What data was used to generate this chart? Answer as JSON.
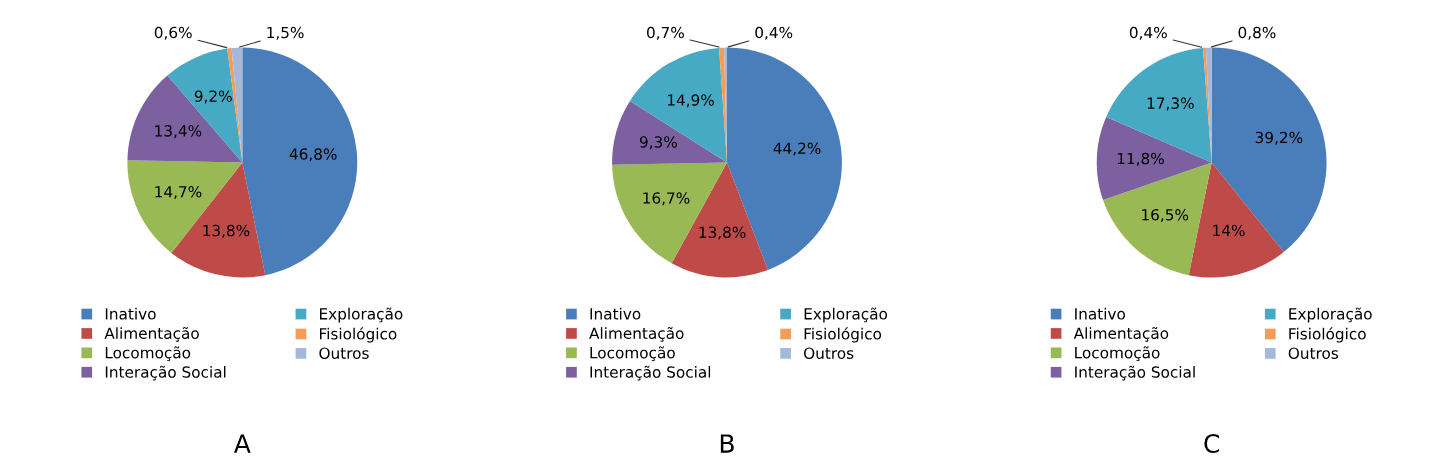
{
  "chart_data": [
    {
      "type": "pie",
      "title": "A",
      "categories": [
        "Inativo",
        "Alimentação",
        "Locomoção",
        "Interação Social",
        "Exploração",
        "Fisiológico",
        "Outros"
      ],
      "values": [
        46.8,
        13.8,
        14.7,
        13.4,
        9.2,
        0.6,
        1.5
      ],
      "value_labels": [
        "46,8%",
        "13,8%",
        "14,7%",
        "13,4%",
        "9,2%",
        "0,6%",
        "1,5%"
      ],
      "colors": [
        "#4a7ebb",
        "#be4b48",
        "#98b954",
        "#7d60a0",
        "#46aac5",
        "#f59d56",
        "#a5b8d9"
      ],
      "legend": "bottom"
    },
    {
      "type": "pie",
      "title": "B",
      "categories": [
        "Inativo",
        "Alimentação",
        "Locomoção",
        "Interação Social",
        "Exploração",
        "Fisiológico",
        "Outros"
      ],
      "values": [
        44.2,
        13.8,
        16.7,
        9.3,
        14.9,
        0.7,
        0.4
      ],
      "value_labels": [
        "44,2%",
        "13,8%",
        "16,7%",
        "9,3%",
        "14,9%",
        "0,7%",
        "0,4%"
      ],
      "colors": [
        "#4a7ebb",
        "#be4b48",
        "#98b954",
        "#7d60a0",
        "#46aac5",
        "#f59d56",
        "#a5b8d9"
      ],
      "legend": "bottom"
    },
    {
      "type": "pie",
      "title": "C",
      "categories": [
        "Inativo",
        "Alimentação",
        "Locomoção",
        "Interação Social",
        "Exploração",
        "Fisiológico",
        "Outros"
      ],
      "values": [
        39.2,
        14,
        16.5,
        11.8,
        17.3,
        0.4,
        0.8
      ],
      "value_labels": [
        "39,2%",
        "14%",
        "16,5%",
        "11,8%",
        "17,3%",
        "0,4%",
        "0,8%"
      ],
      "colors": [
        "#4a7ebb",
        "#be4b48",
        "#98b954",
        "#7d60a0",
        "#46aac5",
        "#f59d56",
        "#a5b8d9"
      ],
      "legend": "bottom"
    }
  ]
}
